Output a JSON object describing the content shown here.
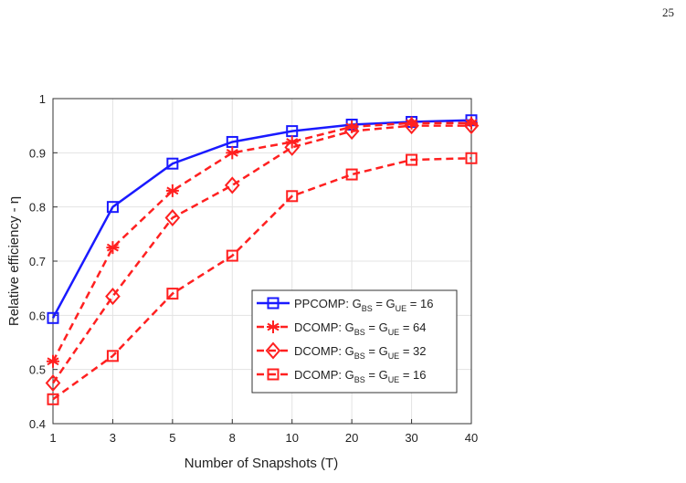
{
  "page_number": "25",
  "chart_data": {
    "type": "line",
    "xlabel": "Number of Snapshots (T)",
    "ylabel": "Relative efficiency - η",
    "categories": [
      "1",
      "3",
      "5",
      "8",
      "10",
      "20",
      "30",
      "40"
    ],
    "ylim": [
      0.4,
      1
    ],
    "yticks": [
      0.4,
      0.5,
      0.6,
      0.7,
      0.8,
      0.9,
      1
    ],
    "grid": true,
    "legend_loc": "lower right",
    "series": [
      {
        "name": "PPCOMP: GBS = GUE = 16",
        "color": "#1a1aff",
        "marker": "square",
        "linestyle": "solid",
        "values": [
          0.595,
          0.8,
          0.88,
          0.92,
          0.94,
          0.952,
          0.957,
          0.96
        ]
      },
      {
        "name": "DCOMP: GBS = GUE = 64",
        "color": "#ff2020",
        "marker": "asterisk",
        "linestyle": "dashed",
        "values": [
          0.515,
          0.725,
          0.83,
          0.9,
          0.92,
          0.948,
          0.955,
          0.955
        ]
      },
      {
        "name": "DCOMP: GBS = GUE = 32",
        "color": "#ff2020",
        "marker": "diamond",
        "linestyle": "dashed",
        "values": [
          0.475,
          0.635,
          0.78,
          0.84,
          0.91,
          0.94,
          0.95,
          0.95
        ]
      },
      {
        "name": "DCOMP: GBS = GUE = 16",
        "color": "#ff2020",
        "marker": "square",
        "linestyle": "dashed",
        "values": [
          0.445,
          0.525,
          0.64,
          0.71,
          0.82,
          0.86,
          0.887,
          0.89
        ]
      }
    ]
  }
}
